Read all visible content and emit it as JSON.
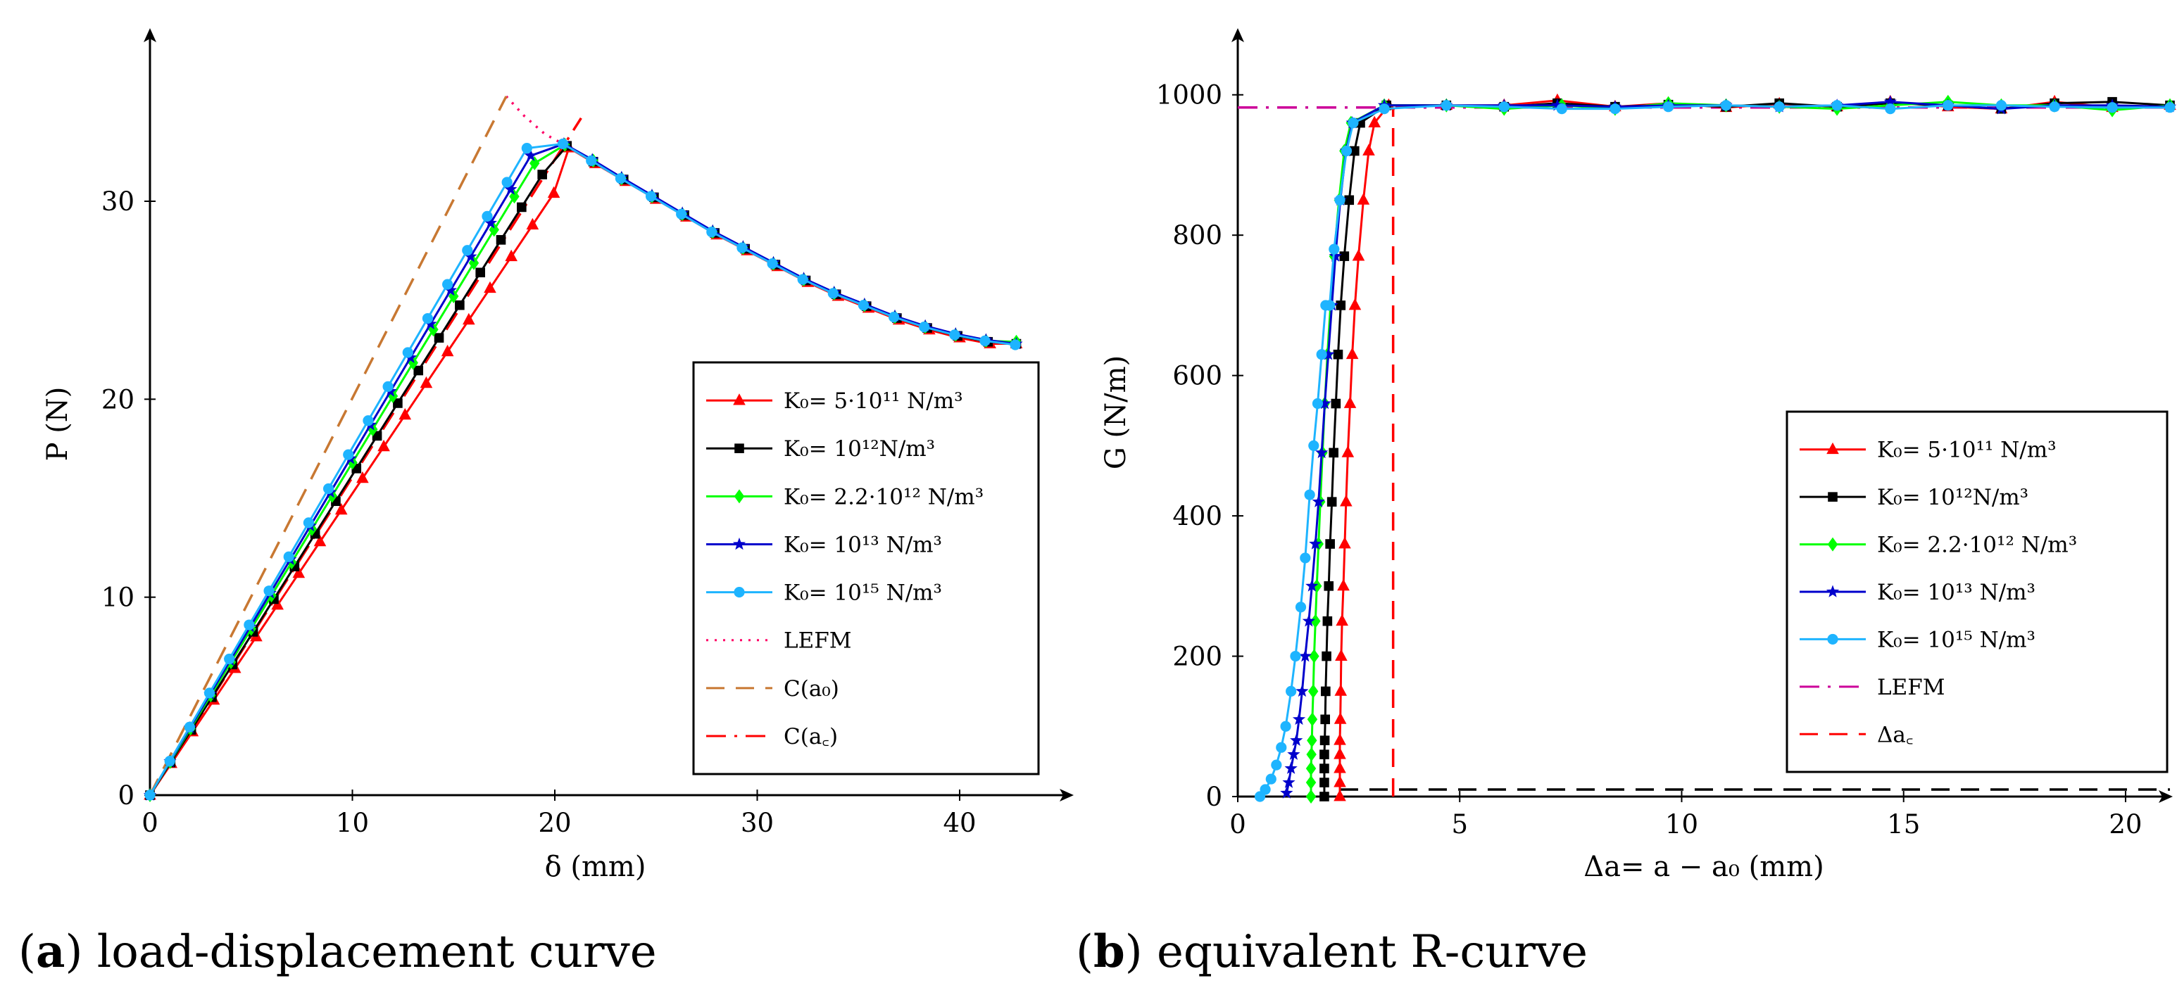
{
  "captions": {
    "a": {
      "tag": "a",
      "text": "load-displacement curve"
    },
    "b": {
      "tag": "b",
      "text": "equivalent R-curve"
    }
  },
  "legend_labels": {
    "k1": "K₀= 5·10¹¹ N/m³",
    "k2": "K₀= 10¹²N/m³",
    "k3": "K₀= 2.2·10¹² N/m³",
    "k4": "K₀= 10¹³ N/m³",
    "k5": "K₀= 10¹⁵ N/m³",
    "lefm": "LEFM",
    "ca0": "C(a₀)",
    "cac": "C(a꜀)",
    "dac": "Δa꜀"
  },
  "colors": {
    "k1": "#ff0000",
    "k2": "#000000",
    "k3": "#00ff00",
    "k4": "#0000cc",
    "k5": "#1eb4ff",
    "lefm_a": "#ff0066",
    "lefm_b": "#cc0099",
    "ca0": "#c87832",
    "cac": "#ff0000",
    "dac": "#ff0000",
    "baseline": "#000000"
  },
  "chart_data": [
    {
      "id": "a",
      "type": "line",
      "xlabel": "δ (mm)",
      "ylabel": "P (N)",
      "xlim": [
        0,
        44
      ],
      "ylim": [
        0,
        37.5
      ],
      "xticks": [
        0,
        10,
        20,
        30,
        40
      ],
      "yticks": [
        0,
        10,
        20,
        30
      ],
      "legend_position": "lower-right",
      "series": [
        {
          "key": "k1",
          "name": "K₀= 5·10¹¹ N/m³",
          "marker": "triangle",
          "x": [
            0,
            1.05,
            2.1,
            3.15,
            4.2,
            5.25,
            6.3,
            7.35,
            8.4,
            9.45,
            10.5,
            11.55,
            12.6,
            13.65,
            14.7,
            15.75,
            16.8,
            17.85,
            18.9,
            19.95,
            20.7,
            22,
            23.5,
            25,
            26.5,
            28,
            29.5,
            31,
            32.5,
            34,
            35.5,
            37,
            38.5,
            40,
            41.5,
            42.8
          ],
          "y": [
            0,
            1.6,
            3.2,
            4.8,
            6.4,
            8.0,
            9.6,
            11.2,
            12.8,
            14.4,
            16.0,
            17.6,
            19.2,
            20.8,
            22.4,
            24.0,
            25.6,
            27.2,
            28.8,
            30.4,
            32.7,
            31.9,
            31.0,
            30.1,
            29.2,
            28.3,
            27.5,
            26.7,
            25.9,
            25.2,
            24.6,
            24.0,
            23.5,
            23.1,
            22.8,
            22.8
          ]
        },
        {
          "key": "k2",
          "name": "K₀= 10¹²N/m³",
          "marker": "square",
          "x": [
            0,
            1.02,
            2.04,
            3.06,
            4.08,
            5.1,
            6.12,
            7.14,
            8.16,
            9.18,
            10.2,
            11.22,
            12.24,
            13.26,
            14.28,
            15.3,
            16.32,
            17.34,
            18.36,
            19.38,
            20.6,
            21.9,
            23.4,
            24.9,
            26.4,
            27.9,
            29.4,
            30.9,
            32.4,
            33.9,
            35.4,
            36.9,
            38.4,
            39.9,
            41.4,
            42.8
          ],
          "y": [
            0,
            1.65,
            3.3,
            4.95,
            6.6,
            8.25,
            9.9,
            11.55,
            13.2,
            14.85,
            16.5,
            18.15,
            19.8,
            21.45,
            23.1,
            24.75,
            26.4,
            28.05,
            29.7,
            31.35,
            32.8,
            32.0,
            31.1,
            30.2,
            29.3,
            28.4,
            27.6,
            26.8,
            26.0,
            25.3,
            24.7,
            24.1,
            23.6,
            23.2,
            22.9,
            22.8
          ]
        },
        {
          "key": "k3",
          "name": "K₀= 2.2·10¹² N/m³",
          "marker": "diamond",
          "x": [
            0,
            1.0,
            2.0,
            3.0,
            4.0,
            5.0,
            6.0,
            7.0,
            8.0,
            9.0,
            10.0,
            11.0,
            12.0,
            13.0,
            14.0,
            15.0,
            16.0,
            17.0,
            18.0,
            19.0,
            20.5,
            21.9,
            23.3,
            24.8,
            26.3,
            27.8,
            29.3,
            30.8,
            32.3,
            33.8,
            35.3,
            36.8,
            38.3,
            39.8,
            41.3,
            42.8
          ],
          "y": [
            0,
            1.68,
            3.36,
            5.04,
            6.72,
            8.4,
            10.08,
            11.76,
            13.44,
            15.12,
            16.8,
            18.48,
            20.16,
            21.84,
            23.52,
            25.2,
            26.88,
            28.56,
            30.24,
            31.92,
            32.85,
            32.05,
            31.15,
            30.25,
            29.35,
            28.45,
            27.65,
            26.85,
            26.05,
            25.35,
            24.75,
            24.15,
            23.65,
            23.25,
            22.95,
            22.9
          ]
        },
        {
          "key": "k4",
          "name": "K₀= 10¹³ N/m³",
          "marker": "star",
          "x": [
            0,
            0.99,
            1.98,
            2.97,
            3.96,
            4.95,
            5.94,
            6.93,
            7.92,
            8.91,
            9.9,
            10.89,
            11.88,
            12.87,
            13.86,
            14.85,
            15.84,
            16.83,
            17.82,
            18.81,
            20.45,
            21.85,
            23.3,
            24.8,
            26.3,
            27.8,
            29.3,
            30.8,
            32.3,
            33.8,
            35.3,
            36.8,
            38.3,
            39.8,
            41.3,
            42.8
          ],
          "y": [
            0,
            1.7,
            3.4,
            5.1,
            6.8,
            8.5,
            10.2,
            11.9,
            13.6,
            15.3,
            17.0,
            18.7,
            20.4,
            22.1,
            23.8,
            25.5,
            27.2,
            28.9,
            30.6,
            32.3,
            32.9,
            32.1,
            31.2,
            30.3,
            29.4,
            28.5,
            27.7,
            26.9,
            26.1,
            25.4,
            24.8,
            24.2,
            23.7,
            23.3,
            23.0,
            22.8
          ]
        },
        {
          "key": "k5",
          "name": "K₀= 10¹⁵ N/m³",
          "marker": "circle",
          "x": [
            0,
            0.98,
            1.96,
            2.94,
            3.92,
            4.9,
            5.88,
            6.86,
            7.84,
            8.82,
            9.8,
            10.78,
            11.76,
            12.74,
            13.72,
            14.7,
            15.68,
            16.66,
            17.64,
            18.62,
            20.4,
            21.8,
            23.25,
            24.75,
            26.25,
            27.75,
            29.25,
            30.75,
            32.25,
            33.75,
            35.25,
            36.75,
            38.25,
            39.75,
            41.25,
            42.75
          ],
          "y": [
            0,
            1.72,
            3.44,
            5.16,
            6.88,
            8.6,
            10.32,
            12.04,
            13.76,
            15.48,
            17.2,
            18.92,
            20.64,
            22.36,
            24.08,
            25.8,
            27.52,
            29.24,
            30.96,
            32.68,
            32.9,
            32.05,
            31.15,
            30.25,
            29.35,
            28.45,
            27.65,
            26.85,
            26.05,
            25.35,
            24.75,
            24.15,
            23.65,
            23.25,
            22.95,
            22.75
          ]
        },
        {
          "key": "lefm_a",
          "name": "LEFM",
          "style": "dotted",
          "x": [
            17.6,
            18.5,
            19.5,
            20.4
          ],
          "y": [
            35.3,
            34.3,
            33.4,
            32.9
          ]
        },
        {
          "key": "ca0",
          "name": "C(a₀)",
          "style": "dashed",
          "x": [
            0,
            17.6
          ],
          "y": [
            0,
            35.3
          ]
        },
        {
          "key": "cac",
          "name": "C(a꜀)",
          "style": "dashdot",
          "x": [
            0,
            21.3
          ],
          "y": [
            0,
            34.2
          ]
        }
      ]
    },
    {
      "id": "b",
      "type": "line",
      "xlabel": "Δa= a − a₀ (mm)",
      "ylabel": "G (N/m)",
      "xlim": [
        0,
        21
      ],
      "ylim": [
        0,
        1095
      ],
      "xticks": [
        0,
        5,
        10,
        15,
        20
      ],
      "yticks": [
        0,
        200,
        400,
        600,
        800,
        1000
      ],
      "legend_position": "lower-right",
      "series": [
        {
          "key": "k1",
          "name": "K₀= 5·10¹¹ N/m³",
          "marker": "triangle",
          "x": [
            2.3,
            2.3,
            2.3,
            2.3,
            2.3,
            2.31,
            2.32,
            2.33,
            2.35,
            2.38,
            2.41,
            2.44,
            2.48,
            2.53,
            2.58,
            2.64,
            2.72,
            2.83,
            2.95,
            3.08,
            3.4,
            4.7,
            6.0,
            7.2,
            8.5,
            9.7,
            11.0,
            12.2,
            13.5,
            14.7,
            16.0,
            17.2,
            18.4,
            19.7,
            21.0
          ],
          "y": [
            0,
            20,
            40,
            60,
            80,
            110,
            150,
            200,
            250,
            300,
            360,
            420,
            490,
            560,
            630,
            700,
            770,
            850,
            920,
            960,
            985,
            985,
            985,
            992,
            983,
            988,
            982,
            987,
            983,
            990,
            983,
            980,
            990,
            982,
            985
          ]
        },
        {
          "key": "k2",
          "name": "K₀= 10¹²N/m³",
          "marker": "square",
          "x": [
            1.95,
            1.95,
            1.95,
            1.95,
            1.96,
            1.97,
            1.98,
            2.0,
            2.02,
            2.05,
            2.08,
            2.12,
            2.16,
            2.21,
            2.26,
            2.32,
            2.4,
            2.51,
            2.63,
            2.76,
            3.35,
            4.7,
            6.0,
            7.2,
            8.5,
            9.7,
            11.0,
            12.2,
            13.5,
            14.7,
            16.0,
            17.2,
            18.4,
            19.7,
            21.0
          ],
          "y": [
            0,
            20,
            40,
            60,
            80,
            110,
            150,
            200,
            250,
            300,
            360,
            420,
            490,
            560,
            630,
            700,
            770,
            850,
            920,
            960,
            985,
            985,
            983,
            988,
            983,
            986,
            983,
            988,
            983,
            988,
            985,
            980,
            988,
            990,
            985
          ]
        },
        {
          "key": "k3",
          "name": "K₀= 2.2·10¹² N/m³",
          "marker": "diamond",
          "x": [
            1.65,
            1.65,
            1.65,
            1.66,
            1.67,
            1.68,
            1.7,
            1.72,
            1.75,
            1.78,
            1.82,
            1.86,
            1.91,
            1.96,
            2.02,
            2.09,
            2.17,
            2.28,
            2.4,
            2.55,
            3.3,
            4.7,
            6.0,
            7.3,
            8.5,
            9.7,
            11.0,
            12.2,
            13.5,
            14.7,
            16.0,
            17.2,
            18.4,
            19.7,
            21.0
          ],
          "y": [
            0,
            20,
            40,
            60,
            80,
            110,
            150,
            200,
            250,
            300,
            360,
            420,
            490,
            560,
            630,
            700,
            770,
            850,
            920,
            960,
            985,
            985,
            980,
            985,
            980,
            988,
            985,
            983,
            980,
            985,
            990,
            985,
            985,
            978,
            985
          ]
        },
        {
          "key": "k4",
          "name": "K₀= 10¹³ N/m³",
          "marker": "star",
          "x": [
            1.1,
            1.15,
            1.2,
            1.26,
            1.32,
            1.38,
            1.45,
            1.52,
            1.6,
            1.67,
            1.75,
            1.82,
            1.89,
            1.96,
            2.04,
            2.12,
            2.2,
            2.31,
            2.44,
            2.58,
            3.3,
            4.7,
            6.0,
            7.2,
            8.5,
            9.7,
            11.0,
            12.2,
            13.5,
            14.7,
            16.0,
            17.2,
            18.4,
            19.7,
            21.0
          ],
          "y": [
            5,
            20,
            40,
            60,
            80,
            110,
            150,
            200,
            250,
            300,
            360,
            420,
            490,
            560,
            630,
            700,
            770,
            850,
            920,
            960,
            985,
            985,
            985,
            985,
            983,
            985,
            985,
            983,
            985,
            990,
            985,
            980,
            985,
            985,
            983
          ]
        },
        {
          "key": "k5",
          "name": "K₀= 10¹⁵ N/m³",
          "marker": "circle",
          "x": [
            0.5,
            0.62,
            0.75,
            0.87,
            0.98,
            1.08,
            1.2,
            1.3,
            1.42,
            1.52,
            1.62,
            1.71,
            1.8,
            1.89,
            1.98,
            2.07,
            2.17,
            2.3,
            2.45,
            2.6,
            3.3,
            4.7,
            6.0,
            7.3,
            8.5,
            9.7,
            11.0,
            12.2,
            13.5,
            14.7,
            16.0,
            17.2,
            18.4,
            19.7,
            21.0
          ],
          "y": [
            0,
            10,
            25,
            45,
            70,
            100,
            150,
            200,
            270,
            340,
            430,
            500,
            560,
            630,
            700,
            700,
            780,
            850,
            920,
            960,
            980,
            985,
            983,
            980,
            980,
            983,
            985,
            983,
            985,
            980,
            985,
            985,
            983,
            982,
            982
          ]
        },
        {
          "key": "lefm_b",
          "name": "LEFM",
          "style": "dashdot",
          "x": [
            0,
            21.0
          ],
          "y": [
            982,
            982
          ]
        },
        {
          "key": "dac",
          "name": "Δa꜀",
          "style": "dashed",
          "x": [
            3.5,
            3.5
          ],
          "y": [
            0,
            982
          ]
        },
        {
          "key": "baseline",
          "name": "",
          "style": "dashed",
          "x": [
            2.3,
            21.0
          ],
          "y": [
            10,
            10
          ]
        }
      ]
    }
  ]
}
